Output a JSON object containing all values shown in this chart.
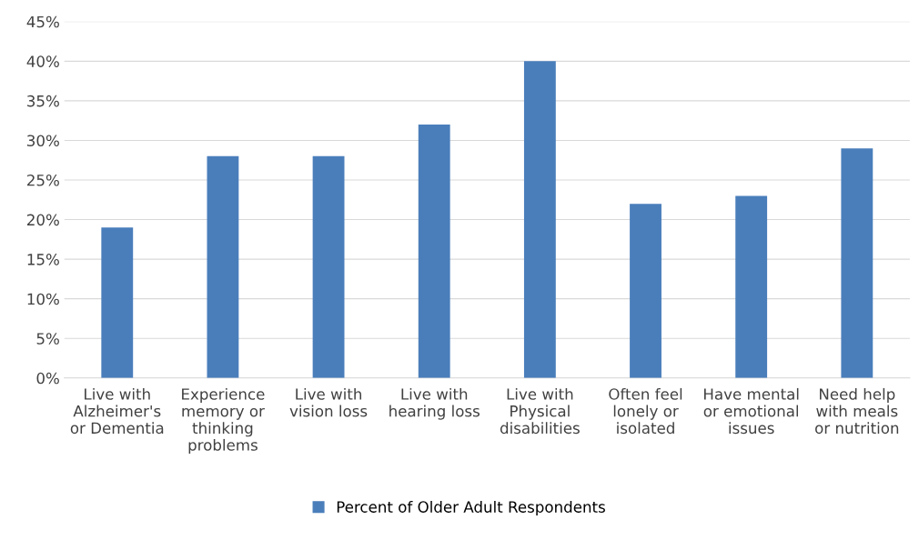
{
  "chart_data": {
    "type": "bar",
    "categories": [
      "Live with\nAlzheimer's\nor Dementia",
      "Experience\nmemory or\nthinking\nproblems",
      "Live with\nvision loss",
      "Live with\nhearing loss",
      "Live with\nPhysical\ndisabilities",
      "Often feel\nlonely or\nisolated",
      "Have mental\nor emotional\nissues",
      "Need help\nwith meals\nor nutrition"
    ],
    "series": [
      {
        "name": "Percent of Older Adult Respondents",
        "color": "#4a7ebb",
        "values": [
          19,
          28,
          28,
          32,
          40,
          22,
          23,
          29
        ]
      }
    ],
    "ylim": [
      0,
      45
    ],
    "yticks": [
      {
        "value": 0,
        "label": "0%"
      },
      {
        "value": 5,
        "label": "5%"
      },
      {
        "value": 10,
        "label": "10%"
      },
      {
        "value": 15,
        "label": "15%"
      },
      {
        "value": 20,
        "label": "20%"
      },
      {
        "value": 25,
        "label": "25%"
      },
      {
        "value": 30,
        "label": "30%"
      },
      {
        "value": 35,
        "label": "35%"
      },
      {
        "value": 40,
        "label": "40%"
      },
      {
        "value": 45,
        "label": "45%"
      }
    ],
    "grid": "y",
    "legend": "bottom"
  }
}
